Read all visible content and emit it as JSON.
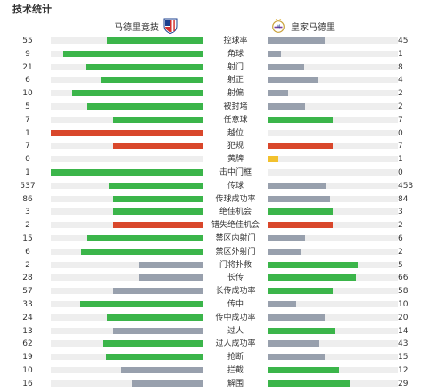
{
  "title": "技术统计",
  "teams": {
    "home": {
      "name": "马德里竞技",
      "crest_icon": "atletico-madrid-crest-icon"
    },
    "away": {
      "name": "皇家马德里",
      "crest_icon": "real-madrid-crest-icon"
    }
  },
  "colors": {
    "green": "#3bb54a",
    "red": "#d9472b",
    "gray": "#98a0ad",
    "yellow": "#f2c12e",
    "track": "#eeeeee"
  },
  "stats": [
    {
      "label": "控球率",
      "home": "55",
      "away": "45",
      "home_fill": 0.63,
      "away_fill": 0.44,
      "home_color": "green",
      "away_color": "gray"
    },
    {
      "label": "角球",
      "home": "9",
      "away": "1",
      "home_fill": 0.92,
      "away_fill": 0.1,
      "home_color": "green",
      "away_color": "gray"
    },
    {
      "label": "射门",
      "home": "21",
      "away": "8",
      "home_fill": 0.77,
      "away_fill": 0.28,
      "home_color": "green",
      "away_color": "gray"
    },
    {
      "label": "射正",
      "home": "6",
      "away": "4",
      "home_fill": 0.67,
      "away_fill": 0.39,
      "home_color": "green",
      "away_color": "gray"
    },
    {
      "label": "射偏",
      "home": "10",
      "away": "2",
      "home_fill": 0.86,
      "away_fill": 0.16,
      "home_color": "green",
      "away_color": "gray"
    },
    {
      "label": "被封堵",
      "home": "5",
      "away": "2",
      "home_fill": 0.76,
      "away_fill": 0.29,
      "home_color": "green",
      "away_color": "gray"
    },
    {
      "label": "任意球",
      "home": "7",
      "away": "7",
      "home_fill": 0.59,
      "away_fill": 0.5,
      "home_color": "green",
      "away_color": "green"
    },
    {
      "label": "越位",
      "home": "1",
      "away": "0",
      "home_fill": 1.0,
      "away_fill": 0.0,
      "home_color": "red",
      "away_color": "gray"
    },
    {
      "label": "犯规",
      "home": "7",
      "away": "7",
      "home_fill": 0.59,
      "away_fill": 0.5,
      "home_color": "red",
      "away_color": "red"
    },
    {
      "label": "黄牌",
      "home": "0",
      "away": "1",
      "home_fill": 0.0,
      "away_fill": 0.08,
      "home_color": "yellow",
      "away_color": "yellow"
    },
    {
      "label": "击中门框",
      "home": "1",
      "away": "0",
      "home_fill": 1.0,
      "away_fill": 0.0,
      "home_color": "green",
      "away_color": "gray"
    },
    {
      "label": "传球",
      "home": "537",
      "away": "453",
      "home_fill": 0.62,
      "away_fill": 0.45,
      "home_color": "green",
      "away_color": "gray"
    },
    {
      "label": "传球成功率",
      "home": "86",
      "away": "84",
      "home_fill": 0.59,
      "away_fill": 0.48,
      "home_color": "green",
      "away_color": "gray"
    },
    {
      "label": "绝佳机会",
      "home": "3",
      "away": "3",
      "home_fill": 0.59,
      "away_fill": 0.5,
      "home_color": "green",
      "away_color": "green"
    },
    {
      "label": "错失绝佳机会",
      "home": "2",
      "away": "2",
      "home_fill": 0.59,
      "away_fill": 0.5,
      "home_color": "red",
      "away_color": "red"
    },
    {
      "label": "禁区内射门",
      "home": "15",
      "away": "6",
      "home_fill": 0.76,
      "away_fill": 0.29,
      "home_color": "green",
      "away_color": "gray"
    },
    {
      "label": "禁区外射门",
      "home": "6",
      "away": "2",
      "home_fill": 0.8,
      "away_fill": 0.25,
      "home_color": "green",
      "away_color": "gray"
    },
    {
      "label": "门将扑救",
      "home": "2",
      "away": "5",
      "home_fill": 0.42,
      "away_fill": 0.69,
      "home_color": "gray",
      "away_color": "green"
    },
    {
      "label": "长传",
      "home": "28",
      "away": "66",
      "home_fill": 0.42,
      "away_fill": 0.68,
      "home_color": "gray",
      "away_color": "green"
    },
    {
      "label": "长传成功率",
      "home": "57",
      "away": "58",
      "home_fill": 0.59,
      "away_fill": 0.5,
      "home_color": "gray",
      "away_color": "green"
    },
    {
      "label": "传中",
      "home": "33",
      "away": "10",
      "home_fill": 0.81,
      "away_fill": 0.22,
      "home_color": "green",
      "away_color": "gray"
    },
    {
      "label": "传中成功率",
      "home": "24",
      "away": "20",
      "home_fill": 0.63,
      "away_fill": 0.44,
      "home_color": "green",
      "away_color": "gray"
    },
    {
      "label": "过人",
      "home": "13",
      "away": "14",
      "home_fill": 0.59,
      "away_fill": 0.52,
      "home_color": "gray",
      "away_color": "green"
    },
    {
      "label": "过人成功率",
      "home": "62",
      "away": "43",
      "home_fill": 0.66,
      "away_fill": 0.4,
      "home_color": "green",
      "away_color": "gray"
    },
    {
      "label": "抢断",
      "home": "19",
      "away": "15",
      "home_fill": 0.64,
      "away_fill": 0.44,
      "home_color": "green",
      "away_color": "gray"
    },
    {
      "label": "拦截",
      "home": "10",
      "away": "12",
      "home_fill": 0.54,
      "away_fill": 0.55,
      "home_color": "gray",
      "away_color": "green"
    },
    {
      "label": "解围",
      "home": "16",
      "away": "29",
      "home_fill": 0.47,
      "away_fill": 0.63,
      "home_color": "gray",
      "away_color": "green"
    }
  ]
}
